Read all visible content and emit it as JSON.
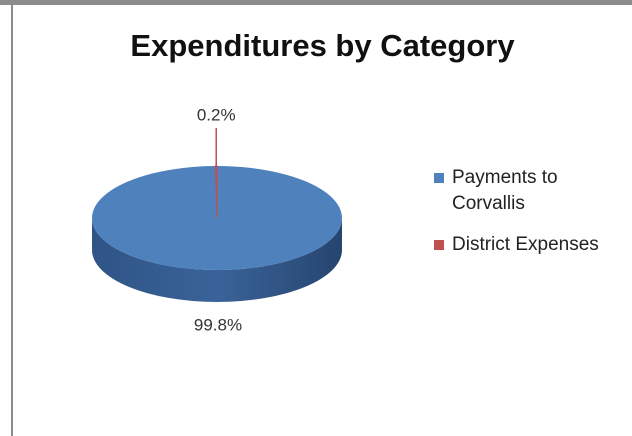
{
  "chart_data": {
    "type": "pie",
    "title": "Expenditures by Category",
    "categories": [
      "Payments to Corvallis",
      "District Expenses"
    ],
    "values": [
      99.8,
      0.2
    ],
    "value_labels": [
      "99.8%",
      "0.2%"
    ],
    "colors": [
      "#4f81bd",
      "#c0504d"
    ],
    "legend": "right"
  }
}
